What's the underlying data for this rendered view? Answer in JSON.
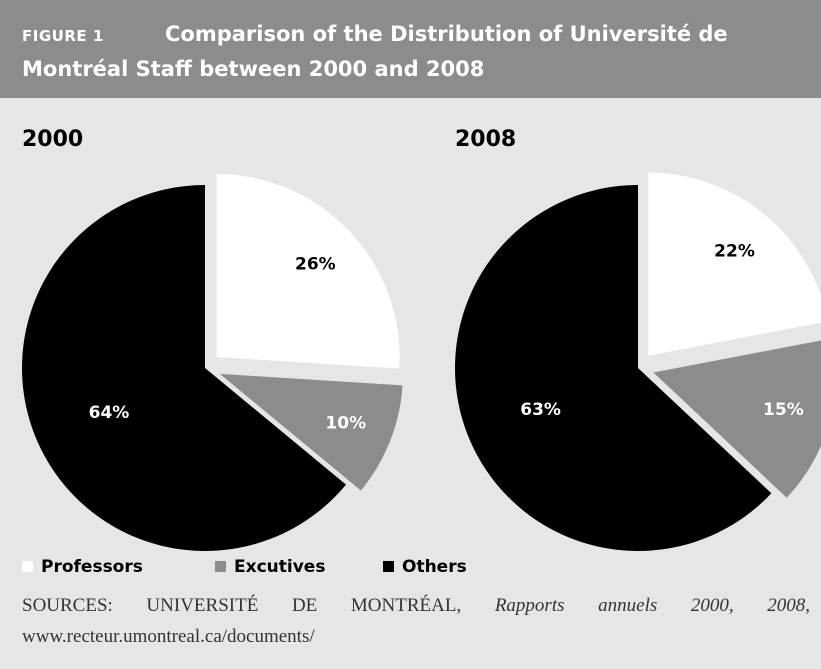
{
  "header": {
    "figure": "FIGURE 1",
    "title": "Comparison of the Distribution of Université de Montréal Staff between 2000 and 2008"
  },
  "chart_data": [
    {
      "type": "pie",
      "title": "2000",
      "labels": [
        "Professors",
        "Excutives",
        "Others"
      ],
      "values": [
        26,
        10,
        64
      ],
      "value_labels": [
        "26%",
        "10%",
        "64%"
      ],
      "colors": [
        "#ffffff",
        "#8c8c8c",
        "#000000"
      ]
    },
    {
      "type": "pie",
      "title": "2008",
      "labels": [
        "Professors",
        "Excutives",
        "Others"
      ],
      "values": [
        22,
        15,
        63
      ],
      "value_labels": [
        "22%",
        "15%",
        "63%"
      ],
      "colors": [
        "#ffffff",
        "#8c8c8c",
        "#000000"
      ]
    }
  ],
  "source": {
    "prefix": "SOURCES: UNIVERSITÉ DE MONTRÉAL, ",
    "italic": "Rapports annuels 2000, 2008",
    "suffix": ", www.recteur.umontreal.ca/documents/"
  }
}
